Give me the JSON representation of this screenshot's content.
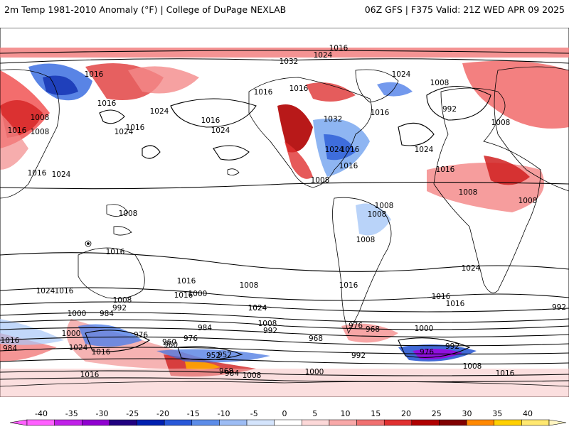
{
  "header": {
    "title_left": "2m Temp 1981-2010 Anomaly (°F) | College of DuPage NEXLAB",
    "title_right": "06Z GFS | F375 Valid: 21Z WED APR 09 2025"
  },
  "map": {
    "isobar_labels": [
      "1016",
      "1024",
      "1032",
      "1024",
      "1016",
      "1008",
      "1016",
      "1016",
      "992",
      "1024",
      "1016",
      "1016",
      "1016",
      "1024",
      "1016",
      "1008",
      "1024",
      "1024",
      "1032",
      "1016",
      "1016",
      "1024",
      "1016",
      "1008",
      "1008",
      "1008",
      "1024",
      "1008",
      "1016",
      "1008",
      "1016",
      "1008",
      "1008",
      "1008",
      "1008",
      "1016",
      "1008",
      "1016",
      "1016",
      "1024",
      "1016",
      "1000",
      "1016",
      "1024",
      "1016",
      "1016",
      "1024",
      "992",
      "1008",
      "1000",
      "984",
      "1008",
      "992",
      "976",
      "1000",
      "1016",
      "1024",
      "992",
      "992",
      "976",
      "984",
      "968",
      "976",
      "960",
      "1000",
      "1024",
      "1016",
      "952",
      "968",
      "984",
      "976",
      "960",
      "1008",
      "1000",
      "992",
      "1008",
      "1016",
      "1016",
      "952",
      "968",
      "984"
    ],
    "colors": {
      "strong_warm": "#b40000",
      "warm": "#f04040",
      "light_warm": "#f8a0a0",
      "cool": "#7aa8f0",
      "strong_cool": "#1038c0",
      "extreme_cool": "#a000e0",
      "contour": "#000000",
      "coastline": "#000000"
    }
  },
  "colorbar": {
    "ticks": [
      "-40",
      "-35",
      "-30",
      "-25",
      "-20",
      "-15",
      "-10",
      "-5",
      "0",
      "5",
      "10",
      "15",
      "20",
      "25",
      "30",
      "35",
      "40"
    ],
    "colors": [
      "#ff60ff",
      "#c020e8",
      "#9000d0",
      "#200080",
      "#0020b0",
      "#2858d8",
      "#5c8ce8",
      "#9cbcf4",
      "#d4e4fc",
      "#ffffff",
      "#fcd8d8",
      "#f8a8a8",
      "#f07070",
      "#e03030",
      "#b00000",
      "#800000",
      "#ff8800",
      "#ffd000",
      "#ffe870"
    ]
  }
}
